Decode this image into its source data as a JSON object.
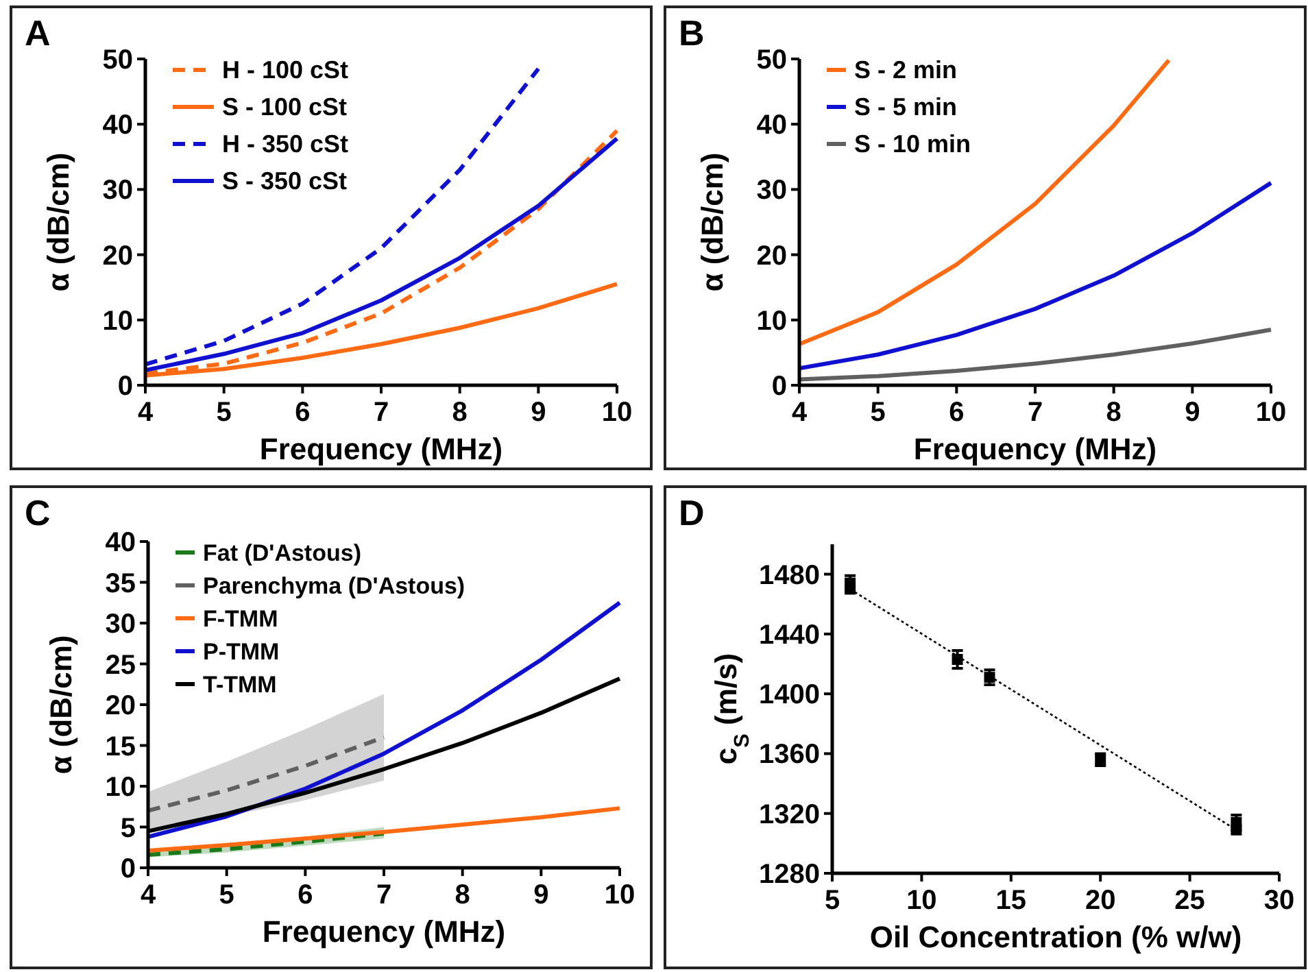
{
  "chart_data": [
    {
      "type": "line",
      "title": "A",
      "xlabel": "Frequency (MHz)",
      "ylabel": "α (dB/cm)",
      "xlim": [
        4,
        10
      ],
      "xticks": [
        4,
        5,
        6,
        7,
        8,
        9,
        10
      ],
      "ylim": [
        0,
        50
      ],
      "yticks": [
        0,
        10,
        20,
        30,
        40,
        50
      ],
      "legend": "top left",
      "marker": "none",
      "x": [
        4,
        5,
        6,
        7,
        8,
        9,
        10
      ],
      "series": [
        {
          "name": "H - 100 cSt",
          "color": "#ff6a13",
          "line_style": "dashed",
          "values": [
            1.8,
            3.3,
            6.5,
            11,
            18,
            27,
            39
          ]
        },
        {
          "name": "S - 100 cSt",
          "color": "#ff6a13",
          "line_style": "solid",
          "values": [
            1.5,
            2.5,
            4.2,
            6.3,
            8.8,
            11.8,
            15.5
          ]
        },
        {
          "name": "H - 350 cSt",
          "color": "#1010d0",
          "line_style": "dashed",
          "values": [
            3.2,
            6.8,
            12.5,
            21,
            33,
            48.5,
            null
          ]
        },
        {
          "name": "S - 350 cSt",
          "color": "#1010d0",
          "line_style": "solid",
          "values": [
            2.3,
            4.8,
            8,
            13,
            19.5,
            27.5,
            37.8
          ]
        }
      ]
    },
    {
      "type": "line",
      "title": "B",
      "xlabel": "Frequency (MHz)",
      "ylabel": "α (dB/cm)",
      "xlim": [
        4,
        10
      ],
      "xticks": [
        4,
        5,
        6,
        7,
        8,
        9,
        10
      ],
      "ylim": [
        0,
        50
      ],
      "yticks": [
        0,
        10,
        20,
        30,
        40,
        50
      ],
      "legend": "top left",
      "marker": "none",
      "x": [
        4,
        5,
        6,
        7,
        8,
        9,
        10
      ],
      "series": [
        {
          "name": "S - 2 min",
          "color": "#ff6a13",
          "line_style": "solid",
          "x": [
            4,
            5,
            6,
            7,
            8,
            8.7
          ],
          "values": [
            6.3,
            11.2,
            18.5,
            27.8,
            39.8,
            49.8
          ]
        },
        {
          "name": "S - 5 min",
          "color": "#1010d0",
          "line_style": "solid",
          "values": [
            2.6,
            4.7,
            7.7,
            11.7,
            16.8,
            23.3,
            31
          ]
        },
        {
          "name": "S - 10 min",
          "color": "#606060",
          "line_style": "solid",
          "values": [
            0.9,
            1.4,
            2.2,
            3.3,
            4.7,
            6.4,
            8.5
          ]
        }
      ]
    },
    {
      "type": "line",
      "title": "C",
      "xlabel": "Frequency (MHz)",
      "ylabel": "α (dB/cm)",
      "xlim": [
        4,
        10
      ],
      "xticks": [
        4,
        5,
        6,
        7,
        8,
        9,
        10
      ],
      "ylim": [
        0,
        40
      ],
      "yticks": [
        0,
        5,
        10,
        15,
        20,
        25,
        30,
        35,
        40
      ],
      "legend": "top left",
      "marker": "none",
      "x": [
        4,
        5,
        6,
        7,
        8,
        9,
        10
      ],
      "series": [
        {
          "name": "Fat (D'Astous)",
          "color": "#1a7a1a",
          "line_style": "dashed",
          "x": [
            4,
            5,
            6,
            7
          ],
          "values": [
            1.6,
            2.3,
            3.2,
            4.2
          ],
          "lower": [
            1.3,
            1.9,
            2.7,
            3.6
          ],
          "upper": [
            2,
            2.8,
            3.8,
            5
          ]
        },
        {
          "name": "Parenchyma (D'Astous)",
          "color": "#606060",
          "line_style": "dashed",
          "x": [
            4,
            5,
            6,
            7
          ],
          "values": [
            7,
            9.5,
            12.5,
            16
          ],
          "lower": [
            4.8,
            6.3,
            8.3,
            10.7
          ],
          "upper": [
            9.3,
            13,
            17,
            21.3
          ]
        },
        {
          "name": "F-TMM",
          "color": "#ff6a13",
          "line_style": "solid",
          "values": [
            2.1,
            2.8,
            3.6,
            4.4,
            5.3,
            6.2,
            7.3
          ]
        },
        {
          "name": "P-TMM",
          "color": "#1010d0",
          "line_style": "solid",
          "values": [
            3.8,
            6.3,
            9.7,
            14,
            19.3,
            25.5,
            32.5
          ]
        },
        {
          "name": "T-TMM",
          "color": "#000000",
          "line_style": "solid",
          "values": [
            4.5,
            6.6,
            9.2,
            12.1,
            15.3,
            19,
            23.2
          ]
        }
      ]
    },
    {
      "type": "scatter",
      "title": "D",
      "xlabel": "Oil Concentration (% w/w)",
      "ylabel": "c$_{S}$ (m/s)",
      "xlim": [
        5,
        30
      ],
      "xticks": [
        5,
        10,
        15,
        20,
        25,
        30
      ],
      "ylim": [
        1280,
        1500
      ],
      "yticks": [
        1280,
        1320,
        1360,
        1400,
        1440,
        1480
      ],
      "marker": "square",
      "series": [
        {
          "color": "#000000",
          "x": [
            6,
            12,
            13.8,
            20,
            27.6
          ],
          "values": [
            1474,
            1423,
            1411,
            1356,
            1314
          ],
          "errors": [
            5,
            6,
            5,
            4,
            5
          ]
        },
        {
          "type": "line",
          "color": "#000000",
          "line_style": "dotted",
          "x": [
            6,
            27.6
          ],
          "values": [
            1470,
            1309
          ]
        }
      ]
    }
  ]
}
